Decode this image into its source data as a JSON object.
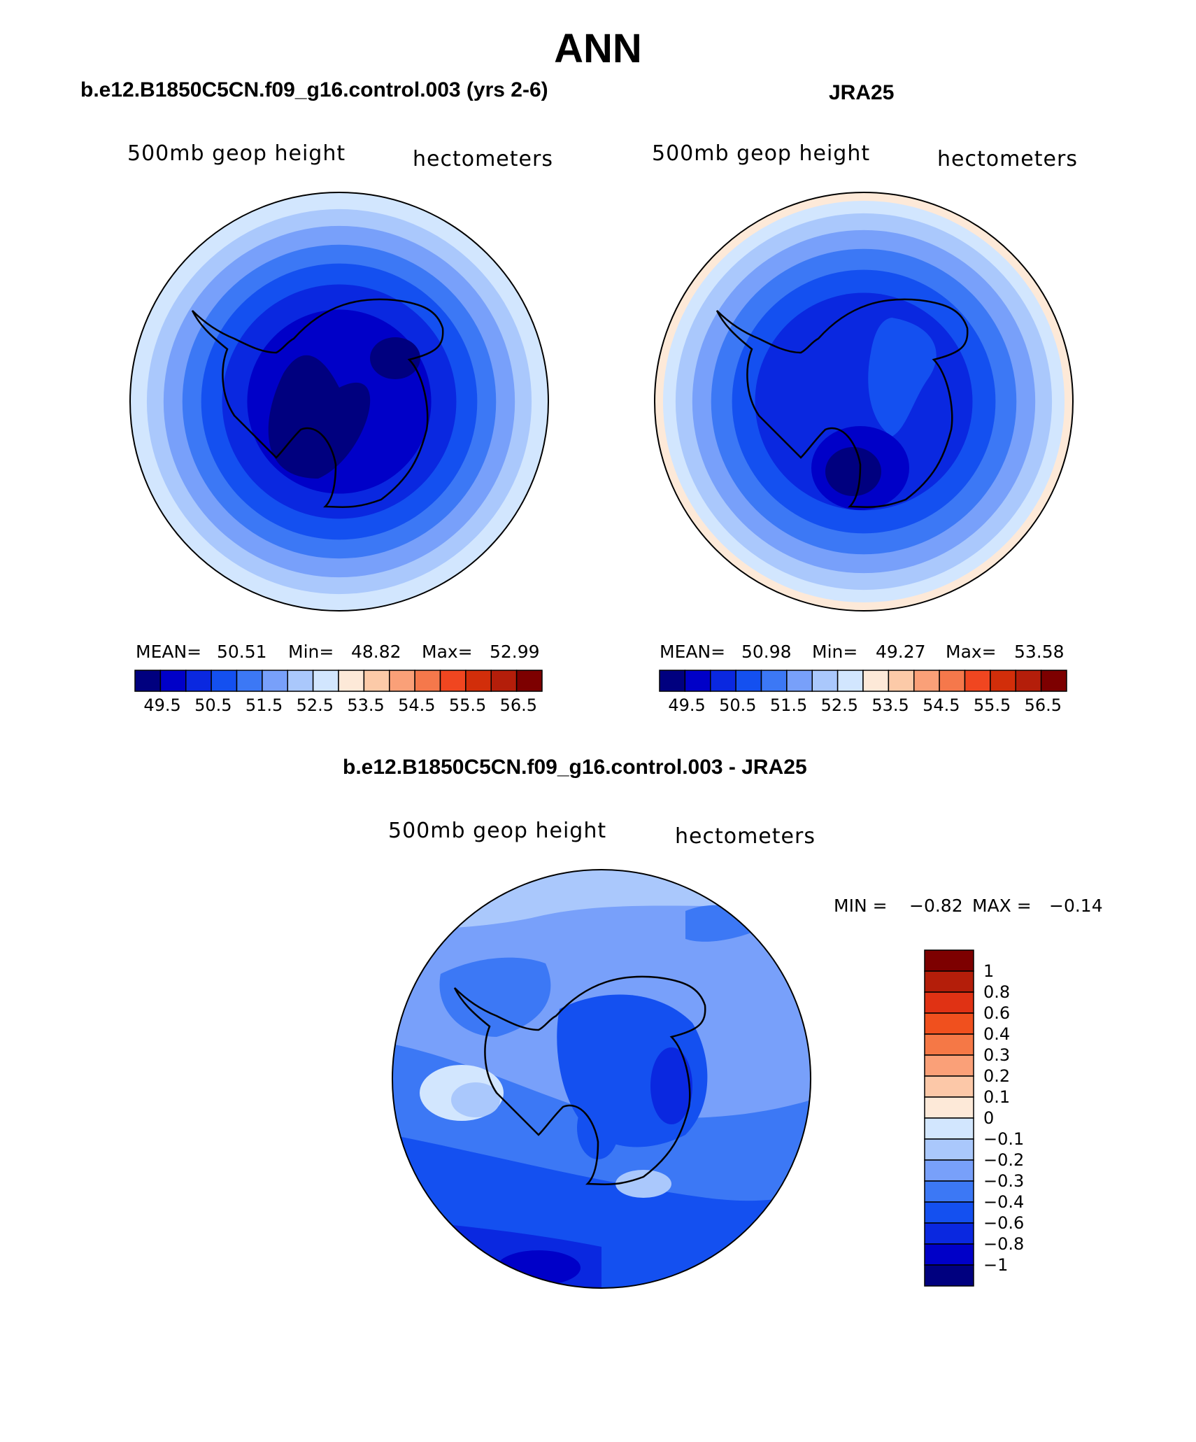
{
  "main_title": "ANN",
  "colors": {
    "ice_edge": "#000000",
    "background": "#ffffff"
  },
  "scale_abs": {
    "colors": [
      "#00007f",
      "#0000c8",
      "#0a28e0",
      "#1450f0",
      "#3c78f5",
      "#78a0fa",
      "#aac8fc",
      "#d2e6fe",
      "#fde9d8",
      "#fccaa8",
      "#faa078",
      "#f5784b",
      "#f04620",
      "#d22e0a",
      "#b41e0a",
      "#7d0000"
    ],
    "labels": [
      "49.5",
      "50.5",
      "51.5",
      "52.5",
      "53.5",
      "54.5",
      "55.5",
      "56.5"
    ]
  },
  "scale_diff": {
    "colors": [
      "#7d0000",
      "#b41e0a",
      "#e03214",
      "#f0501e",
      "#f57846",
      "#faa078",
      "#fcc8a8",
      "#fde9d8",
      "#d2e6fe",
      "#aac8fc",
      "#78a0fa",
      "#3c78f5",
      "#1450f0",
      "#0a28e0",
      "#0000c8",
      "#00007f"
    ],
    "labels": [
      "1",
      "0.8",
      "0.6",
      "0.4",
      "0.3",
      "0.2",
      "0.1",
      "0",
      "−0.1",
      "−0.2",
      "−0.3",
      "−0.4",
      "−0.6",
      "−0.8",
      "−1"
    ]
  },
  "panels": {
    "left": {
      "case_title": "b.e12.B1850C5CN.f09_g16.control.003 (yrs 2-6)",
      "variable": "500mb  geop  height",
      "units": "hectometers",
      "mean_label": "MEAN=",
      "mean_value": "50.51",
      "min_label": "Min=",
      "min_value": "48.82",
      "max_label": "Max=",
      "max_value": "52.99",
      "rings": [
        {
          "r": 1.0,
          "c": "#d2e6fe"
        },
        {
          "r": 0.92,
          "c": "#aac8fc"
        },
        {
          "r": 0.84,
          "c": "#78a0fa"
        },
        {
          "r": 0.75,
          "c": "#3c78f5"
        },
        {
          "r": 0.66,
          "c": "#1450f0"
        },
        {
          "r": 0.56,
          "c": "#0a28e0"
        },
        {
          "r": 0.44,
          "c": "#0000c8"
        }
      ]
    },
    "right": {
      "case_title": "JRA25",
      "variable": "500mb  geop  height",
      "units": "hectometers",
      "mean_label": "MEAN=",
      "mean_value": "50.98",
      "min_label": "Min=",
      "min_value": "49.27",
      "max_label": "Max=",
      "max_value": "53.58",
      "rings": [
        {
          "r": 1.0,
          "c": "#fde9d8"
        },
        {
          "r": 0.96,
          "c": "#d2e6fe"
        },
        {
          "r": 0.9,
          "c": "#aac8fc"
        },
        {
          "r": 0.82,
          "c": "#78a0fa"
        },
        {
          "r": 0.73,
          "c": "#3c78f5"
        },
        {
          "r": 0.63,
          "c": "#1450f0"
        },
        {
          "r": 0.52,
          "c": "#0a28e0"
        }
      ]
    },
    "diff": {
      "case_title": "b.e12.B1850C5CN.f09_g16.control.003 - JRA25",
      "variable": "500mb  geop  height",
      "units": "hectometers",
      "min_label": "MIN =",
      "min_value": "−0.82",
      "max_label": "MAX =",
      "max_value": "−0.14"
    }
  }
}
